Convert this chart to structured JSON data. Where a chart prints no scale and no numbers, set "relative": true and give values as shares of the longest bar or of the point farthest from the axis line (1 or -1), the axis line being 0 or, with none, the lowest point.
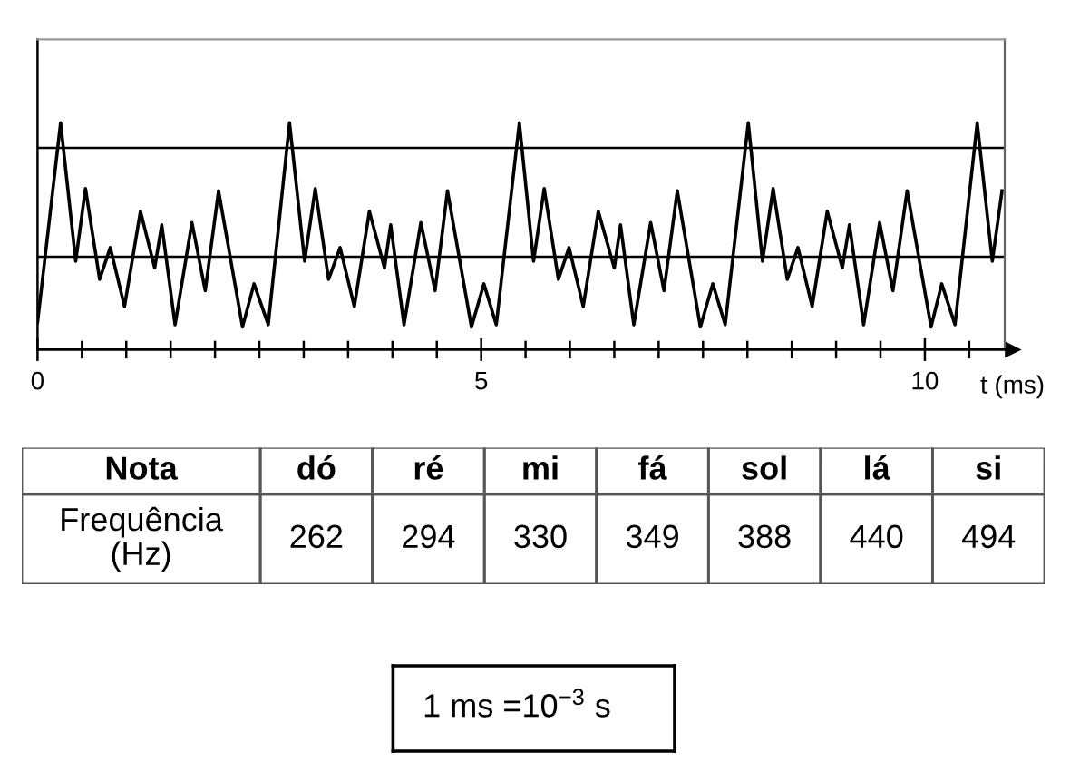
{
  "chart_data": [
    {
      "type": "line",
      "xlabel": "t (ms)",
      "relative": true,
      "tick_labels": "x",
      "line_style": "solid",
      "xlim": [
        0,
        10.9
      ],
      "xticks": [
        0,
        {
          "value": 0.5,
          "label": null
        },
        {
          "value": 1,
          "label": null
        },
        {
          "value": 1.5,
          "label": null
        },
        {
          "value": 2,
          "label": null
        },
        {
          "value": 2.5,
          "label": null
        },
        {
          "value": 3,
          "label": null
        },
        {
          "value": 3.5,
          "label": null
        },
        {
          "value": 4,
          "label": null
        },
        {
          "value": 4.5,
          "label": null
        },
        5,
        {
          "value": 5.5,
          "label": null
        },
        {
          "value": 6,
          "label": null
        },
        {
          "value": 6.5,
          "label": null
        },
        {
          "value": 7,
          "label": null
        },
        {
          "value": 7.5,
          "label": null
        },
        {
          "value": 8,
          "label": null
        },
        {
          "value": 8.5,
          "label": null
        },
        {
          "value": 9,
          "label": null
        },
        {
          "value": 9.5,
          "label": null
        },
        10,
        {
          "value": 10.5,
          "label": null
        }
      ],
      "x": [
        0,
        0.26,
        0.43,
        0.54,
        0.7,
        0.82,
        0.98,
        1.16,
        1.32,
        1.4,
        1.55,
        1.74,
        1.89,
        2.04,
        2.31,
        2.44,
        2.6,
        2.84,
        3.01,
        3.13,
        3.28,
        3.41,
        3.57,
        3.74,
        3.91,
        3.98,
        4.13,
        4.32,
        4.48,
        4.62,
        4.89,
        5.03,
        5.17,
        5.43,
        5.59,
        5.71,
        5.87,
        5.99,
        6.15,
        6.32,
        6.5,
        6.57,
        6.72,
        6.91,
        7.06,
        7.21,
        7.47,
        7.61,
        7.75,
        8.01,
        8.17,
        8.29,
        8.45,
        8.57,
        8.73,
        8.9,
        9.07,
        9.15,
        9.31,
        9.49,
        9.64,
        9.8,
        10.07,
        10.19,
        10.34,
        10.59,
        10.76,
        10.87
      ],
      "series": [
        {
          "color": "#000000",
          "values": [
            0.12,
            1.0,
            0.39,
            0.71,
            0.31,
            0.45,
            0.19,
            0.61,
            0.36,
            0.55,
            0.11,
            0.56,
            0.26,
            0.7,
            0.1,
            0.29,
            0.11,
            1.0,
            0.39,
            0.71,
            0.31,
            0.45,
            0.19,
            0.61,
            0.36,
            0.55,
            0.11,
            0.56,
            0.26,
            0.7,
            0.1,
            0.29,
            0.11,
            1.0,
            0.39,
            0.71,
            0.31,
            0.45,
            0.19,
            0.61,
            0.36,
            0.55,
            0.11,
            0.56,
            0.26,
            0.7,
            0.1,
            0.29,
            0.11,
            1.0,
            0.39,
            0.71,
            0.31,
            0.45,
            0.19,
            0.61,
            0.36,
            0.55,
            0.11,
            0.56,
            0.26,
            0.7,
            0.1,
            0.29,
            0.11,
            1.0,
            0.39,
            0.7
          ]
        }
      ],
      "ref_lines": [
        {
          "axis": "y",
          "value": 0.89,
          "color": "#000000"
        },
        {
          "axis": "y",
          "value": 0.41,
          "color": "#000000"
        }
      ]
    },
    {
      "type": "other",
      "xlabel": "Nota",
      "ylabel": "Frequência (Hz)",
      "categories": [
        "dó",
        "ré",
        "mi",
        "fá",
        "sol",
        "lá",
        "si"
      ],
      "values": [
        262,
        294,
        330,
        349,
        388,
        440,
        494
      ],
      "data_labels": true
    },
    {
      "type": "other",
      "annotations": [
        "1 ms =10$^{−3}$ s"
      ]
    }
  ]
}
